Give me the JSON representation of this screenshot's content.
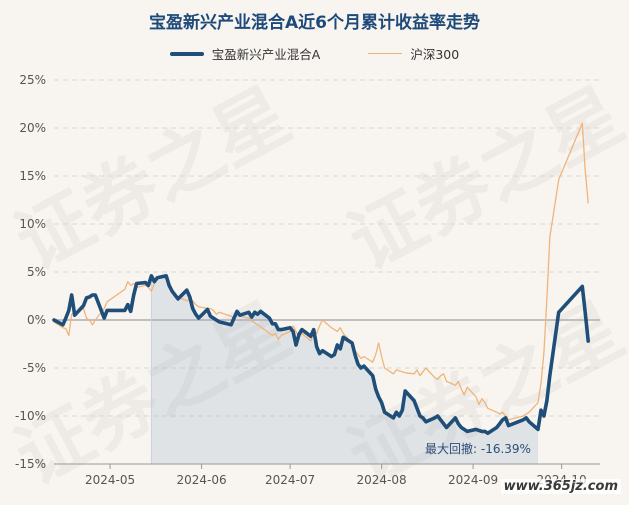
{
  "chart_data": {
    "type": "line",
    "title": "宝盈新兴产业混合A近6个月累计收益率走势",
    "xlabel": "",
    "ylabel": "",
    "x_ticks": [
      "2024-05",
      "2024-06",
      "2024-07",
      "2024-08",
      "2024-09",
      "2024-10"
    ],
    "y_ticks": [
      "25%",
      "20%",
      "15%",
      "10%",
      "5%",
      "0%",
      "-5%",
      "-10%",
      "-15%"
    ],
    "ylim": [
      -15,
      25
    ],
    "x_range": [
      "2024-04-12",
      "2024-10-14"
    ],
    "grid": "horizontal-dashed",
    "legend_position": "top-center",
    "annotation": "最大回撤: -16.39%",
    "series": [
      {
        "name": "宝盈新兴产业混合A",
        "color": "#1f4e79",
        "points": [
          [
            "2024-04-12",
            0.0
          ],
          [
            "2024-04-15",
            -0.5
          ],
          [
            "2024-04-16",
            0.2
          ],
          [
            "2024-04-17",
            1.0
          ],
          [
            "2024-04-18",
            2.6
          ],
          [
            "2024-04-19",
            0.5
          ],
          [
            "2024-04-22",
            1.5
          ],
          [
            "2024-04-23",
            2.3
          ],
          [
            "2024-04-24",
            2.4
          ],
          [
            "2024-04-25",
            2.6
          ],
          [
            "2024-04-26",
            2.6
          ],
          [
            "2024-04-29",
            0.2
          ],
          [
            "2024-04-30",
            1.0
          ],
          [
            "2024-05-06",
            1.0
          ],
          [
            "2024-05-07",
            1.6
          ],
          [
            "2024-05-08",
            0.9
          ],
          [
            "2024-05-09",
            2.6
          ],
          [
            "2024-05-10",
            3.8
          ],
          [
            "2024-05-13",
            3.9
          ],
          [
            "2024-05-14",
            3.6
          ],
          [
            "2024-05-15",
            4.6
          ],
          [
            "2024-05-16",
            4.0
          ],
          [
            "2024-05-17",
            4.4
          ],
          [
            "2024-05-20",
            4.6
          ],
          [
            "2024-05-21",
            3.6
          ],
          [
            "2024-05-22",
            3.0
          ],
          [
            "2024-05-23",
            2.6
          ],
          [
            "2024-05-24",
            2.2
          ],
          [
            "2024-05-27",
            3.1
          ],
          [
            "2024-05-28",
            2.4
          ],
          [
            "2024-05-29",
            1.2
          ],
          [
            "2024-05-30",
            0.6
          ],
          [
            "2024-05-31",
            0.2
          ],
          [
            "2024-06-03",
            1.1
          ],
          [
            "2024-06-04",
            0.4
          ],
          [
            "2024-06-05",
            0.2
          ],
          [
            "2024-06-06",
            0.0
          ],
          [
            "2024-06-07",
            -0.2
          ],
          [
            "2024-06-11",
            -0.5
          ],
          [
            "2024-06-12",
            0.2
          ],
          [
            "2024-06-13",
            0.9
          ],
          [
            "2024-06-14",
            0.5
          ],
          [
            "2024-06-17",
            0.8
          ],
          [
            "2024-06-18",
            0.3
          ],
          [
            "2024-06-19",
            0.8
          ],
          [
            "2024-06-20",
            0.6
          ],
          [
            "2024-06-21",
            0.9
          ],
          [
            "2024-06-24",
            0.2
          ],
          [
            "2024-06-25",
            -0.4
          ],
          [
            "2024-06-26",
            -0.4
          ],
          [
            "2024-06-27",
            -1.0
          ],
          [
            "2024-06-28",
            -1.0
          ],
          [
            "2024-07-01",
            -0.8
          ],
          [
            "2024-07-02",
            -1.2
          ],
          [
            "2024-07-03",
            -2.6
          ],
          [
            "2024-07-04",
            -1.5
          ],
          [
            "2024-07-05",
            -1.0
          ],
          [
            "2024-07-08",
            -1.7
          ],
          [
            "2024-07-09",
            -1.0
          ],
          [
            "2024-07-10",
            -2.8
          ],
          [
            "2024-07-11",
            -3.5
          ],
          [
            "2024-07-12",
            -3.2
          ],
          [
            "2024-07-15",
            -3.8
          ],
          [
            "2024-07-16",
            -3.6
          ],
          [
            "2024-07-17",
            -2.6
          ],
          [
            "2024-07-18",
            -3.0
          ],
          [
            "2024-07-19",
            -1.8
          ],
          [
            "2024-07-22",
            -2.4
          ],
          [
            "2024-07-23",
            -3.6
          ],
          [
            "2024-07-24",
            -4.6
          ],
          [
            "2024-07-25",
            -5.0
          ],
          [
            "2024-07-26",
            -4.8
          ],
          [
            "2024-07-29",
            -5.8
          ],
          [
            "2024-07-30",
            -7.2
          ],
          [
            "2024-07-31",
            -8.0
          ],
          [
            "2024-08-01",
            -8.6
          ],
          [
            "2024-08-02",
            -9.6
          ],
          [
            "2024-08-05",
            -10.2
          ],
          [
            "2024-08-06",
            -9.6
          ],
          [
            "2024-08-07",
            -10.0
          ],
          [
            "2024-08-08",
            -9.4
          ],
          [
            "2024-08-09",
            -7.4
          ],
          [
            "2024-08-12",
            -8.4
          ],
          [
            "2024-08-13",
            -9.2
          ],
          [
            "2024-08-14",
            -10.0
          ],
          [
            "2024-08-15",
            -10.2
          ],
          [
            "2024-08-16",
            -10.6
          ],
          [
            "2024-08-19",
            -10.2
          ],
          [
            "2024-08-20",
            -10.0
          ],
          [
            "2024-08-21",
            -10.4
          ],
          [
            "2024-08-22",
            -10.8
          ],
          [
            "2024-08-23",
            -11.2
          ],
          [
            "2024-08-26",
            -10.2
          ],
          [
            "2024-08-27",
            -10.8
          ],
          [
            "2024-08-28",
            -11.2
          ],
          [
            "2024-08-29",
            -11.4
          ],
          [
            "2024-08-30",
            -11.6
          ],
          [
            "2024-09-02",
            -11.4
          ],
          [
            "2024-09-03",
            -11.5
          ],
          [
            "2024-09-04",
            -11.6
          ],
          [
            "2024-09-05",
            -11.6
          ],
          [
            "2024-09-06",
            -11.8
          ],
          [
            "2024-09-09",
            -11.2
          ],
          [
            "2024-09-10",
            -10.8
          ],
          [
            "2024-09-11",
            -10.4
          ],
          [
            "2024-09-12",
            -10.2
          ],
          [
            "2024-09-13",
            -11.0
          ],
          [
            "2024-09-18",
            -10.4
          ],
          [
            "2024-09-19",
            -10.2
          ],
          [
            "2024-09-20",
            -10.6
          ],
          [
            "2024-09-23",
            -11.4
          ],
          [
            "2024-09-24",
            -9.4
          ],
          [
            "2024-09-25",
            -10.0
          ],
          [
            "2024-09-26",
            -8.4
          ],
          [
            "2024-09-27",
            -5.8
          ],
          [
            "2024-09-30",
            0.8
          ],
          [
            "2024-10-08",
            3.5
          ],
          [
            "2024-10-09",
            0.8
          ],
          [
            "2024-10-10",
            -2.2
          ]
        ]
      },
      {
        "name": "沪深300",
        "color": "#f0b47a",
        "points": [
          [
            "2024-04-12",
            -0.2
          ],
          [
            "2024-04-15",
            -0.8
          ],
          [
            "2024-04-16",
            -0.9
          ],
          [
            "2024-04-17",
            -1.6
          ],
          [
            "2024-04-18",
            0.6
          ],
          [
            "2024-04-19",
            0.8
          ],
          [
            "2024-04-22",
            1.2
          ],
          [
            "2024-04-23",
            0.2
          ],
          [
            "2024-04-24",
            0.0
          ],
          [
            "2024-04-25",
            -0.5
          ],
          [
            "2024-04-26",
            0.0
          ],
          [
            "2024-04-29",
            1.2
          ],
          [
            "2024-04-30",
            1.9
          ],
          [
            "2024-05-06",
            3.2
          ],
          [
            "2024-05-07",
            4.0
          ],
          [
            "2024-05-08",
            3.6
          ],
          [
            "2024-05-09",
            3.8
          ],
          [
            "2024-05-10",
            3.4
          ],
          [
            "2024-05-13",
            3.6
          ],
          [
            "2024-05-14",
            3.4
          ],
          [
            "2024-05-15",
            3.0
          ],
          [
            "2024-05-16",
            3.8
          ],
          [
            "2024-05-17",
            4.4
          ],
          [
            "2024-05-20",
            4.4
          ],
          [
            "2024-05-21",
            4.0
          ],
          [
            "2024-05-22",
            3.2
          ],
          [
            "2024-05-23",
            2.6
          ],
          [
            "2024-05-24",
            2.4
          ],
          [
            "2024-05-27",
            2.0
          ],
          [
            "2024-05-28",
            2.2
          ],
          [
            "2024-05-29",
            2.0
          ],
          [
            "2024-05-30",
            1.6
          ],
          [
            "2024-05-31",
            1.4
          ],
          [
            "2024-06-03",
            1.2
          ],
          [
            "2024-06-04",
            1.2
          ],
          [
            "2024-06-05",
            1.0
          ],
          [
            "2024-06-06",
            0.6
          ],
          [
            "2024-06-07",
            0.8
          ],
          [
            "2024-06-11",
            0.4
          ],
          [
            "2024-06-12",
            0.2
          ],
          [
            "2024-06-13",
            0.6
          ],
          [
            "2024-06-14",
            0.4
          ],
          [
            "2024-06-17",
            0.2
          ],
          [
            "2024-06-18",
            -0.1
          ],
          [
            "2024-06-19",
            -0.3
          ],
          [
            "2024-06-20",
            -0.5
          ],
          [
            "2024-06-21",
            -0.7
          ],
          [
            "2024-06-24",
            -1.4
          ],
          [
            "2024-06-25",
            -1.6
          ],
          [
            "2024-06-26",
            -1.4
          ],
          [
            "2024-06-27",
            -2.0
          ],
          [
            "2024-06-28",
            -1.6
          ],
          [
            "2024-07-01",
            -1.2
          ],
          [
            "2024-07-02",
            -0.6
          ],
          [
            "2024-07-03",
            -1.2
          ],
          [
            "2024-07-04",
            -1.8
          ],
          [
            "2024-07-05",
            -1.4
          ],
          [
            "2024-07-08",
            -2.2
          ],
          [
            "2024-07-09",
            -1.2
          ],
          [
            "2024-07-10",
            -1.4
          ],
          [
            "2024-07-11",
            -0.6
          ],
          [
            "2024-07-12",
            0.0
          ],
          [
            "2024-07-15",
            -0.8
          ],
          [
            "2024-07-16",
            -1.0
          ],
          [
            "2024-07-17",
            -1.2
          ],
          [
            "2024-07-18",
            -0.8
          ],
          [
            "2024-07-19",
            -1.4
          ],
          [
            "2024-07-22",
            -2.4
          ],
          [
            "2024-07-23",
            -3.2
          ],
          [
            "2024-07-24",
            -3.6
          ],
          [
            "2024-07-25",
            -4.0
          ],
          [
            "2024-07-26",
            -3.8
          ],
          [
            "2024-07-29",
            -4.4
          ],
          [
            "2024-07-30",
            -3.6
          ],
          [
            "2024-07-31",
            -2.4
          ],
          [
            "2024-08-01",
            -3.8
          ],
          [
            "2024-08-02",
            -5.0
          ],
          [
            "2024-08-05",
            -5.6
          ],
          [
            "2024-08-06",
            -5.2
          ],
          [
            "2024-08-07",
            -5.3
          ],
          [
            "2024-08-08",
            -5.4
          ],
          [
            "2024-08-09",
            -5.5
          ],
          [
            "2024-08-12",
            -5.6
          ],
          [
            "2024-08-13",
            -5.2
          ],
          [
            "2024-08-14",
            -5.8
          ],
          [
            "2024-08-15",
            -5.4
          ],
          [
            "2024-08-16",
            -5.0
          ],
          [
            "2024-08-19",
            -6.0
          ],
          [
            "2024-08-20",
            -6.2
          ],
          [
            "2024-08-21",
            -5.8
          ],
          [
            "2024-08-22",
            -5.6
          ],
          [
            "2024-08-23",
            -6.4
          ],
          [
            "2024-08-26",
            -6.8
          ],
          [
            "2024-08-27",
            -6.4
          ],
          [
            "2024-08-28",
            -7.2
          ],
          [
            "2024-08-29",
            -7.8
          ],
          [
            "2024-08-30",
            -7.0
          ],
          [
            "2024-09-02",
            -8.0
          ],
          [
            "2024-09-03",
            -8.8
          ],
          [
            "2024-09-04",
            -8.2
          ],
          [
            "2024-09-05",
            -8.6
          ],
          [
            "2024-09-06",
            -9.2
          ],
          [
            "2024-09-09",
            -9.6
          ],
          [
            "2024-09-10",
            -9.8
          ],
          [
            "2024-09-11",
            -9.6
          ],
          [
            "2024-09-12",
            -10.0
          ],
          [
            "2024-09-13",
            -10.4
          ],
          [
            "2024-09-18",
            -10.0
          ],
          [
            "2024-09-19",
            -9.8
          ],
          [
            "2024-09-20",
            -9.6
          ],
          [
            "2024-09-23",
            -8.6
          ],
          [
            "2024-09-24",
            -6.6
          ],
          [
            "2024-09-25",
            -3.4
          ],
          [
            "2024-09-26",
            2.2
          ],
          [
            "2024-09-27",
            8.6
          ],
          [
            "2024-09-30",
            14.6
          ],
          [
            "2024-10-08",
            20.5
          ],
          [
            "2024-10-09",
            15.6
          ],
          [
            "2024-10-10",
            12.2
          ]
        ]
      }
    ]
  },
  "watermark": {
    "text": "证券之星",
    "site": "www.365jz.com"
  }
}
